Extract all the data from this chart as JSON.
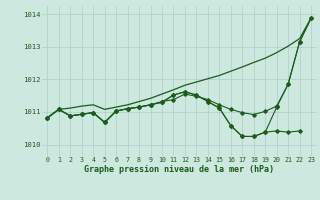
{
  "background_color": "#cce8df",
  "grid_color": "#aacfc7",
  "line_color": "#1a5c1a",
  "xlabel": "Graphe pression niveau de la mer (hPa)",
  "xlim": [
    -0.5,
    23.5
  ],
  "ylim": [
    1009.65,
    1014.25
  ],
  "yticks": [
    1010,
    1011,
    1012,
    1013,
    1014
  ],
  "xticks": [
    0,
    1,
    2,
    3,
    4,
    5,
    6,
    7,
    8,
    9,
    10,
    11,
    12,
    13,
    14,
    15,
    16,
    17,
    18,
    19,
    20,
    21,
    22,
    23
  ],
  "line_with_markers1": [
    1010.82,
    1011.08,
    1010.88,
    1010.93,
    1010.98,
    1010.68,
    1011.03,
    1011.1,
    1011.15,
    1011.22,
    1011.3,
    1011.52,
    1011.62,
    1011.52,
    1011.32,
    1011.12,
    1010.58,
    1010.25,
    1010.25,
    1010.38,
    1011.15,
    1011.85,
    1013.15,
    1013.88
  ],
  "line_with_markers2": [
    1010.82,
    1011.08,
    1010.88,
    1010.93,
    1010.98,
    1010.68,
    1011.03,
    1011.1,
    1011.15,
    1011.22,
    1011.3,
    1011.52,
    1011.62,
    1011.52,
    1011.32,
    1011.12,
    1010.58,
    1010.25,
    1010.25,
    1010.38,
    1010.42,
    1010.38,
    1010.42,
    null
  ],
  "line_with_markers3": [
    1010.82,
    1011.08,
    1010.88,
    1010.93,
    1010.98,
    1010.68,
    1011.03,
    1011.1,
    1011.15,
    1011.22,
    1011.32,
    1011.38,
    1011.55,
    1011.48,
    1011.38,
    1011.22,
    1011.08,
    1010.98,
    1010.92,
    1011.02,
    1011.18,
    1011.85,
    1013.15,
    1013.88
  ],
  "smooth_line": [
    1010.82,
    1011.08,
    1011.12,
    1011.18,
    1011.22,
    1011.08,
    1011.15,
    1011.22,
    1011.32,
    1011.42,
    1011.55,
    1011.68,
    1011.82,
    1011.92,
    1012.02,
    1012.12,
    1012.25,
    1012.38,
    1012.52,
    1012.65,
    1012.82,
    1013.02,
    1013.25,
    1013.88
  ]
}
